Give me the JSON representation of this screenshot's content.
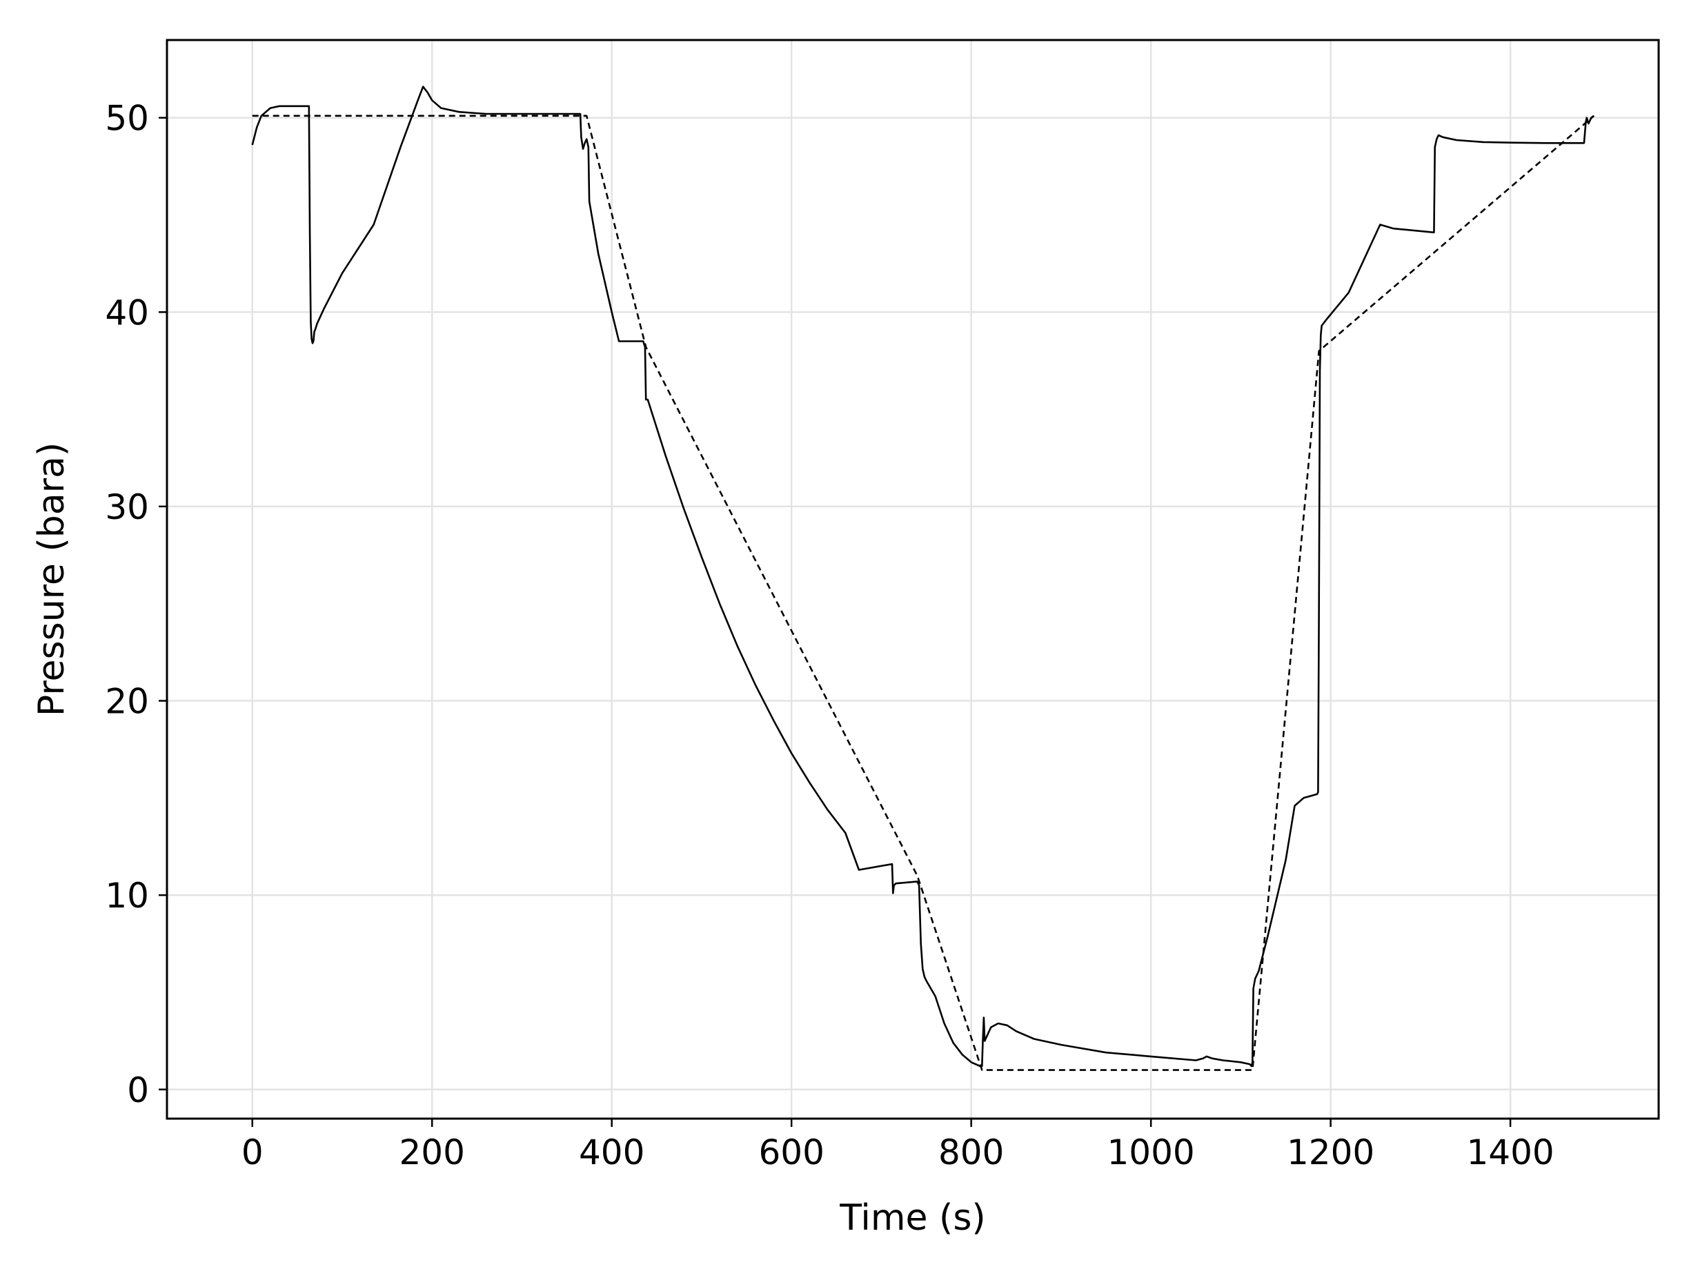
{
  "chart_data": {
    "type": "line",
    "xlabel": "Time (s)",
    "ylabel": "Pressure (bara)",
    "xlim": [
      -95,
      1565
    ],
    "ylim": [
      -1.5,
      54
    ],
    "xticks": [
      0,
      200,
      400,
      600,
      800,
      1000,
      1200,
      1400
    ],
    "yticks": [
      0,
      10,
      20,
      30,
      40,
      50
    ],
    "grid": true,
    "colors": {
      "line": "#000000",
      "grid": "#e3e3e3",
      "axes": "#000000"
    },
    "series": [
      {
        "style": "solid",
        "x": [
          0,
          5,
          10,
          20,
          30,
          40,
          50,
          63,
          64,
          65,
          66,
          67,
          68,
          69,
          70,
          72,
          75,
          80,
          100,
          135,
          165,
          185,
          190,
          195,
          200,
          210,
          230,
          260,
          300,
          365,
          366,
          368,
          370,
          372,
          374,
          375,
          385,
          400,
          408,
          435,
          437,
          438,
          440,
          460,
          480,
          500,
          520,
          540,
          560,
          580,
          600,
          620,
          640,
          660,
          675,
          712,
          713,
          714,
          716,
          740,
          742,
          744,
          746,
          748,
          750,
          760,
          770,
          780,
          790,
          800,
          810,
          812,
          813,
          814,
          815,
          818,
          822,
          830,
          840,
          850,
          870,
          900,
          950,
          1000,
          1050,
          1058,
          1062,
          1068,
          1080,
          1100,
          1110,
          1112,
          1113,
          1114,
          1116,
          1120,
          1130,
          1150,
          1160,
          1170,
          1185,
          1186,
          1187,
          1188,
          1189,
          1190,
          1195,
          1220,
          1255,
          1270,
          1315,
          1316,
          1318,
          1320,
          1325,
          1340,
          1370,
          1400,
          1440,
          1480,
          1482,
          1484,
          1485,
          1487,
          1490,
          1493
        ],
        "y": [
          48.6,
          49.5,
          50.1,
          50.5,
          50.6,
          50.6,
          50.6,
          50.6,
          44,
          39.5,
          38.6,
          38.4,
          38.5,
          39,
          39.1,
          39.4,
          39.7,
          40.2,
          42,
          44.5,
          48.5,
          51,
          51.6,
          51.3,
          50.9,
          50.5,
          50.3,
          50.2,
          50.2,
          50.2,
          49,
          48.4,
          48.7,
          48.9,
          48.5,
          45.7,
          43,
          40,
          38.5,
          38.5,
          38.2,
          35.5,
          35.5,
          32.6,
          29.9,
          27.4,
          25,
          22.8,
          20.8,
          19,
          17.3,
          15.8,
          14.4,
          13.2,
          11.3,
          11.6,
          10.1,
          10.5,
          10.6,
          10.7,
          10.5,
          7.5,
          6.2,
          5.8,
          5.6,
          4.8,
          3.4,
          2.4,
          1.8,
          1.4,
          1.2,
          1.2,
          2.6,
          3.7,
          2.5,
          2.8,
          3.2,
          3.4,
          3.3,
          3,
          2.6,
          2.3,
          1.9,
          1.7,
          1.5,
          1.6,
          1.7,
          1.6,
          1.5,
          1.4,
          1.3,
          1.2,
          1.4,
          5.2,
          5.7,
          6.1,
          7.9,
          11.8,
          14.6,
          15,
          15.2,
          15.3,
          25,
          37,
          38.8,
          39.3,
          39.6,
          41,
          44.5,
          44.3,
          44.1,
          48.5,
          48.9,
          49.1,
          49,
          48.85,
          48.75,
          48.72,
          48.7,
          48.7,
          48.7,
          49.8,
          50,
          49.7,
          50,
          50.1
        ]
      },
      {
        "style": "dashed",
        "x": [
          0,
          372,
          438,
          740,
          812,
          1113,
          1187,
          1493
        ],
        "y": [
          50.1,
          50.1,
          38.2,
          11,
          1,
          1,
          38,
          50.1
        ]
      }
    ]
  }
}
